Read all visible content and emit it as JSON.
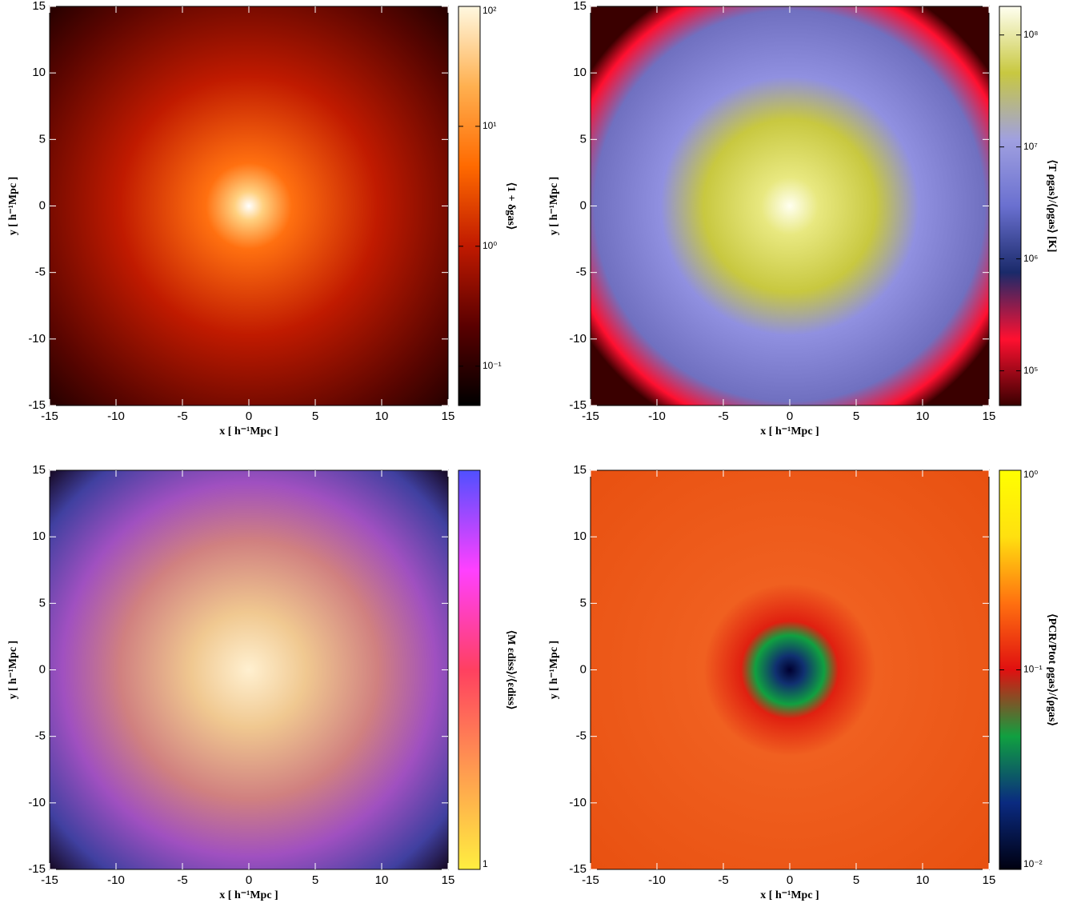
{
  "chart_data": [
    {
      "type": "heatmap",
      "xlabel": "x [ h⁻¹Mpc ]",
      "ylabel": "y [ h⁻¹Mpc ]",
      "xlim": [
        -15,
        15
      ],
      "ylim": [
        -15,
        15
      ],
      "xticks": [
        -15,
        -10,
        -5,
        0,
        5,
        10,
        15
      ],
      "yticks": [
        -15,
        -10,
        -5,
        0,
        5,
        10,
        15
      ],
      "colorbar": {
        "label": "⟨1 + δgas⟩",
        "scale": "log",
        "clim": [
          0.047,
          100
        ],
        "ticks": [
          {
            "value": 100,
            "label": "10²"
          },
          {
            "value": 10,
            "label": "10¹"
          },
          {
            "value": 1,
            "label": "10⁰"
          },
          {
            "value": 0.1,
            "label": "10⁻¹"
          }
        ],
        "colors": [
          "#000000",
          "#5a0000",
          "#c01a00",
          "#ff6a00",
          "#ffb050",
          "#fff8e0"
        ]
      }
    },
    {
      "type": "heatmap",
      "xlabel": "x [ h⁻¹Mpc ]",
      "ylabel": "y [ h⁻¹Mpc ]",
      "xlim": [
        -15,
        15
      ],
      "ylim": [
        -15,
        15
      ],
      "xticks": [
        -15,
        -10,
        -5,
        0,
        5,
        10,
        15
      ],
      "yticks": [
        -15,
        -10,
        -5,
        0,
        5,
        10,
        15
      ],
      "colorbar": {
        "label": "⟨T ρgas⟩/⟨ρgas⟩ [K]",
        "scale": "log",
        "clim": [
          49000,
          180000000
        ],
        "ticks": [
          {
            "value": 100000000,
            "label": "10⁸"
          },
          {
            "value": 10000000,
            "label": "10⁷"
          },
          {
            "value": 1000000,
            "label": "10⁶"
          },
          {
            "value": 100000,
            "label": "10⁵"
          }
        ],
        "colors": [
          "#3a0000",
          "#ff1030",
          "#1a2a6a",
          "#6a70d0",
          "#a0a0e0",
          "#c8c840",
          "#fffff0"
        ]
      }
    },
    {
      "type": "heatmap",
      "xlabel": "x [ h⁻¹Mpc ]",
      "ylabel": "y [ h⁻¹Mpc ]",
      "xlim": [
        -15,
        15
      ],
      "ylim": [
        -15,
        15
      ],
      "xticks": [
        -15,
        -10,
        -5,
        0,
        5,
        10,
        15
      ],
      "yticks": [
        -15,
        -10,
        -5,
        0,
        5,
        10,
        15
      ],
      "colorbar": {
        "label": "⟨M εdiss⟩/⟨εdiss⟩",
        "scale": "log",
        "clim": [
          1,
          10
        ],
        "ticks": [
          1
        ],
        "colors": [
          "#ffee40",
          "#ff9a50",
          "#ff4060",
          "#ff40ff",
          "#5050ff"
        ]
      }
    },
    {
      "type": "heatmap",
      "xlabel": "x [ h⁻¹Mpc ]",
      "ylabel": "y [ h⁻¹Mpc ]",
      "xlim": [
        -15,
        15
      ],
      "ylim": [
        -15,
        15
      ],
      "xticks": [
        -15,
        -10,
        -5,
        0,
        5,
        10,
        15
      ],
      "yticks": [
        -15,
        -10,
        -5,
        0,
        5,
        10,
        15
      ],
      "colorbar": {
        "label": "⟨PCR/Ptot ρgas⟩/⟨ρgas⟩",
        "scale": "log",
        "clim": [
          0.01,
          1
        ],
        "ticks": [
          {
            "value": 1,
            "label": "10⁰"
          },
          {
            "value": 0.1,
            "label": "10⁻¹"
          },
          {
            "value": 0.01,
            "label": "10⁻²"
          }
        ],
        "colors": [
          "#000010",
          "#0a2a80",
          "#10a040",
          "#e01010",
          "#ff7010",
          "#ffe010",
          "#ffff00"
        ]
      }
    }
  ]
}
